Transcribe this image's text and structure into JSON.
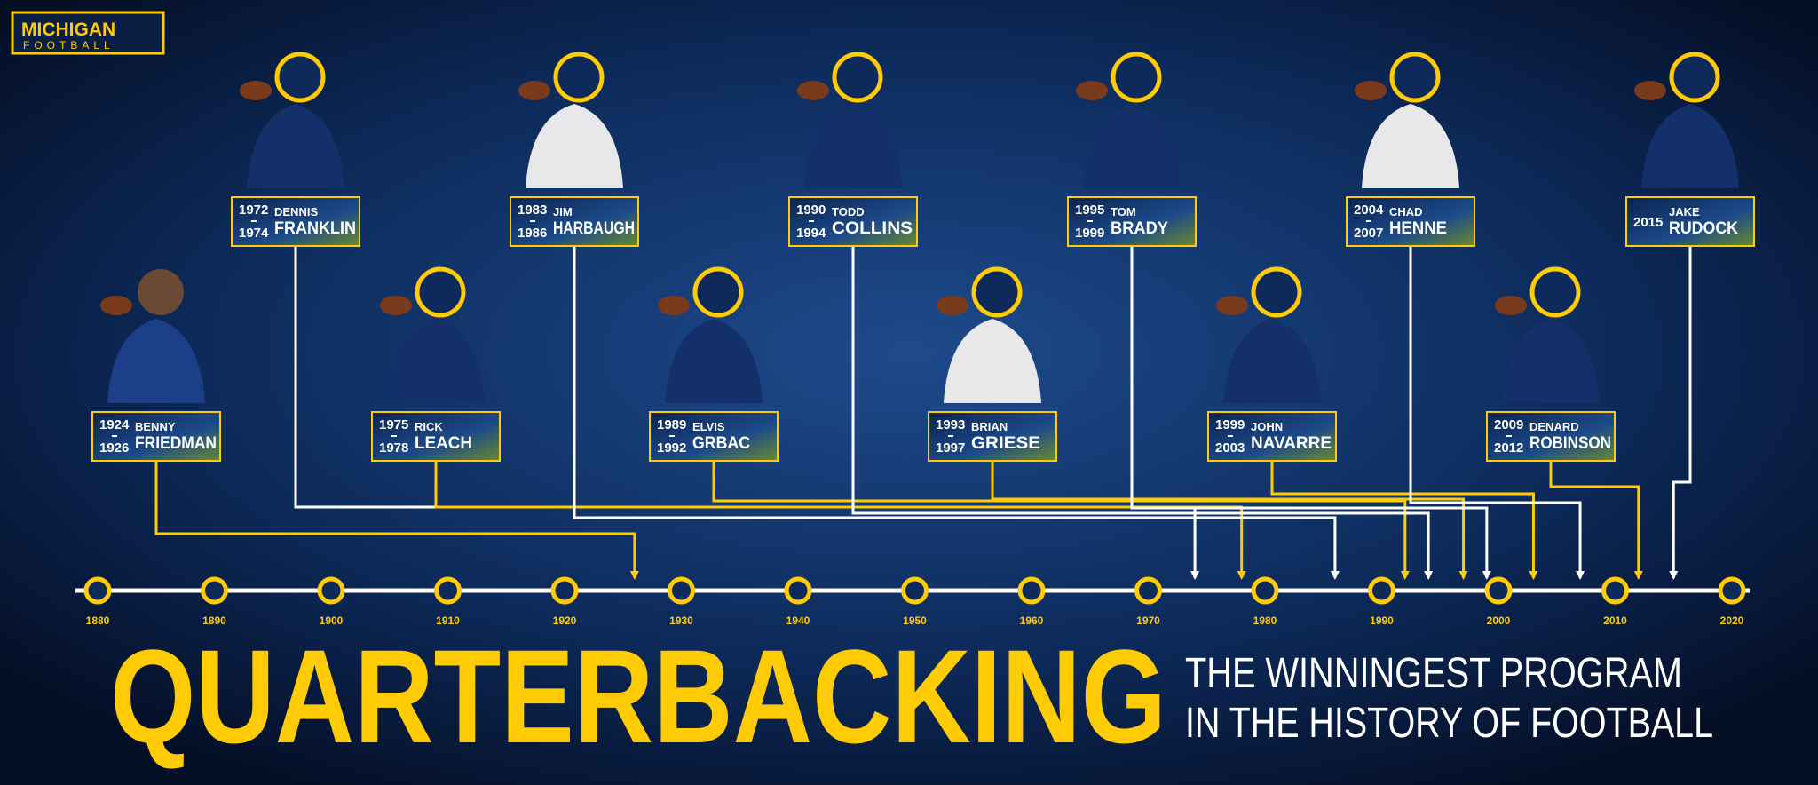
{
  "logo": {
    "line1": "MICHIGAN",
    "line2": "FOOTBALL"
  },
  "timeline": {
    "ticks": [
      1880,
      1890,
      1900,
      1910,
      1920,
      1930,
      1940,
      1950,
      1960,
      1970,
      1980,
      1990,
      2000,
      2010,
      2020
    ]
  },
  "players": [
    {
      "first": "BENNY",
      "last": "FRIEDMAN",
      "years": [
        1924,
        1926
      ]
    },
    {
      "first": "DENNIS",
      "last": "FRANKLIN",
      "years": [
        1972,
        1974
      ]
    },
    {
      "first": "RICK",
      "last": "LEACH",
      "years": [
        1975,
        1978
      ]
    },
    {
      "first": "JIM",
      "last": "HARBAUGH",
      "years": [
        1983,
        1986
      ]
    },
    {
      "first": "ELVIS",
      "last": "GRBAC",
      "years": [
        1989,
        1992
      ]
    },
    {
      "first": "TODD",
      "last": "COLLINS",
      "years": [
        1990,
        1994
      ]
    },
    {
      "first": "BRIAN",
      "last": "GRIESE",
      "years": [
        1993,
        1997
      ]
    },
    {
      "first": "TOM",
      "last": "BRADY",
      "years": [
        1995,
        1999
      ]
    },
    {
      "first": "JOHN",
      "last": "NAVARRE",
      "years": [
        1999,
        2003
      ]
    },
    {
      "first": "CHAD",
      "last": "HENNE",
      "years": [
        2004,
        2007
      ]
    },
    {
      "first": "DENARD",
      "last": "ROBINSON",
      "years": [
        2009,
        2012
      ]
    },
    {
      "first": "JAKE",
      "last": "RUDOCK",
      "years": [
        2015
      ]
    }
  ],
  "title": "QUARTERBACKING",
  "subtitle": {
    "line1": "THE WINNINGEST PROGRAM",
    "line2": "IN THE HISTORY OF FOOTBALL"
  }
}
